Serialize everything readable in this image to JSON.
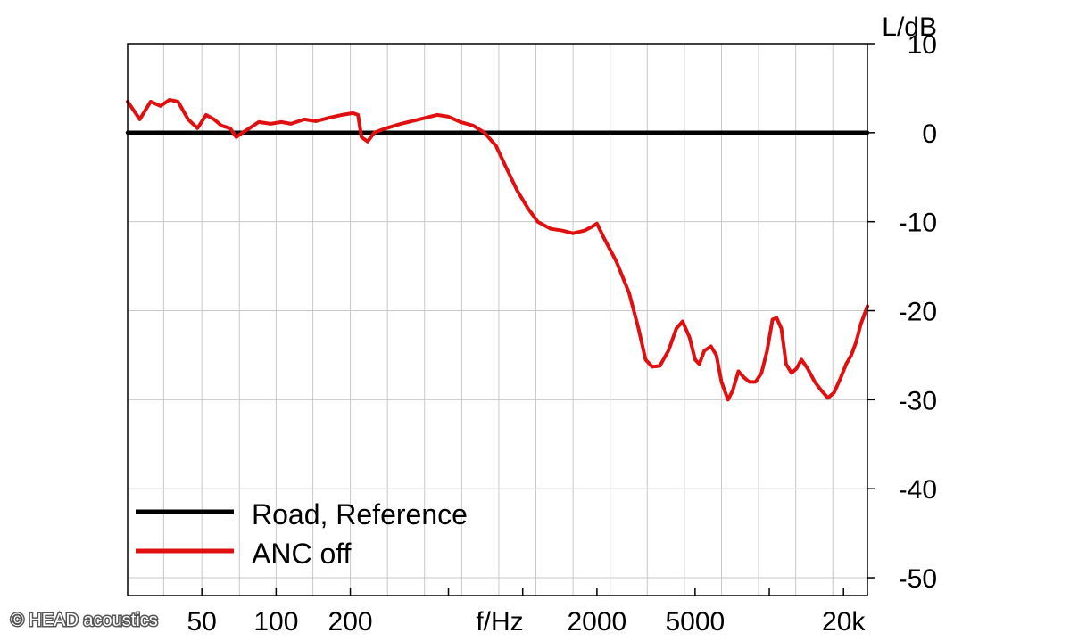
{
  "chart_data": {
    "type": "line",
    "title": "",
    "xlabel": "f/Hz",
    "ylabel": "L/dB",
    "x_scale": "log",
    "xlim": [
      25,
      25000
    ],
    "ylim": [
      -52,
      10
    ],
    "x_ticks": [
      50,
      100,
      200,
      500,
      1000,
      2000,
      5000,
      10000,
      20000
    ],
    "x_tick_labels": [
      {
        "value": 50,
        "label": "50"
      },
      {
        "value": 100,
        "label": "100"
      },
      {
        "value": 200,
        "label": "200"
      },
      {
        "value": 2000,
        "label": "2000"
      },
      {
        "value": 5000,
        "label": "5000"
      },
      {
        "value": 20000,
        "label": "20k"
      }
    ],
    "x_minor_gridlines": [
      25,
      35,
      50,
      71,
      100,
      141,
      200,
      283,
      400,
      566,
      800,
      1131,
      1600,
      2263,
      3200,
      4525,
      6400,
      9050,
      12800,
      18100,
      25000
    ],
    "y_ticks": [
      10,
      0,
      -10,
      -20,
      -30,
      -40,
      -50
    ],
    "y_tick_labels": [
      "10",
      "0",
      "-10",
      "-20",
      "-30",
      "-40",
      "-50"
    ],
    "grid": true,
    "legend": "bottom-left",
    "series": [
      {
        "name": "Road, Reference",
        "color": "#000000",
        "points": [
          [
            25,
            0
          ],
          [
            25000,
            0
          ]
        ]
      },
      {
        "name": "ANC off",
        "color": "#e01010",
        "points": [
          [
            25,
            3.5
          ],
          [
            28,
            1.5
          ],
          [
            31,
            3.5
          ],
          [
            34,
            3.0
          ],
          [
            37,
            3.7
          ],
          [
            40,
            3.5
          ],
          [
            44,
            1.5
          ],
          [
            48,
            0.5
          ],
          [
            52,
            2.0
          ],
          [
            56,
            1.5
          ],
          [
            60,
            0.8
          ],
          [
            65,
            0.5
          ],
          [
            69,
            -0.5
          ],
          [
            73,
            0.0
          ],
          [
            78,
            0.5
          ],
          [
            85,
            1.2
          ],
          [
            95,
            1.0
          ],
          [
            105,
            1.2
          ],
          [
            115,
            1.0
          ],
          [
            130,
            1.5
          ],
          [
            145,
            1.3
          ],
          [
            165,
            1.7
          ],
          [
            185,
            2.0
          ],
          [
            205,
            2.2
          ],
          [
            215,
            2.0
          ],
          [
            222,
            -0.5
          ],
          [
            235,
            -1.0
          ],
          [
            250,
            0.0
          ],
          [
            280,
            0.5
          ],
          [
            320,
            1.0
          ],
          [
            380,
            1.5
          ],
          [
            450,
            2.0
          ],
          [
            500,
            1.8
          ],
          [
            560,
            1.2
          ],
          [
            630,
            0.8
          ],
          [
            700,
            0.0
          ],
          [
            780,
            -1.5
          ],
          [
            860,
            -4.0
          ],
          [
            950,
            -6.5
          ],
          [
            1050,
            -8.5
          ],
          [
            1150,
            -10.0
          ],
          [
            1300,
            -10.8
          ],
          [
            1450,
            -11.0
          ],
          [
            1600,
            -11.3
          ],
          [
            1780,
            -11.0
          ],
          [
            1900,
            -10.6
          ],
          [
            2000,
            -10.2
          ],
          [
            2150,
            -12.0
          ],
          [
            2400,
            -14.5
          ],
          [
            2700,
            -18.0
          ],
          [
            2950,
            -22.0
          ],
          [
            3150,
            -25.5
          ],
          [
            3350,
            -26.3
          ],
          [
            3600,
            -26.2
          ],
          [
            3900,
            -24.5
          ],
          [
            4200,
            -22.0
          ],
          [
            4450,
            -21.2
          ],
          [
            4750,
            -23.0
          ],
          [
            5000,
            -25.5
          ],
          [
            5200,
            -26.0
          ],
          [
            5450,
            -24.5
          ],
          [
            5800,
            -24.0
          ],
          [
            6100,
            -25.0
          ],
          [
            6400,
            -28.0
          ],
          [
            6800,
            -30.0
          ],
          [
            7100,
            -29.0
          ],
          [
            7500,
            -26.8
          ],
          [
            7900,
            -27.5
          ],
          [
            8300,
            -28.0
          ],
          [
            8800,
            -28.0
          ],
          [
            9300,
            -27.0
          ],
          [
            9800,
            -24.5
          ],
          [
            10300,
            -21.0
          ],
          [
            10700,
            -20.8
          ],
          [
            11200,
            -22.0
          ],
          [
            11700,
            -26.0
          ],
          [
            12300,
            -27.0
          ],
          [
            12900,
            -26.5
          ],
          [
            13500,
            -25.5
          ],
          [
            14300,
            -26.5
          ],
          [
            15300,
            -28.0
          ],
          [
            16300,
            -29.0
          ],
          [
            17300,
            -29.8
          ],
          [
            18300,
            -29.2
          ],
          [
            19500,
            -27.5
          ],
          [
            20500,
            -26.0
          ],
          [
            21500,
            -25.0
          ],
          [
            22500,
            -23.5
          ],
          [
            23500,
            -21.5
          ],
          [
            25000,
            -19.5
          ]
        ]
      }
    ]
  },
  "copyright": "© HEAD acoustics"
}
